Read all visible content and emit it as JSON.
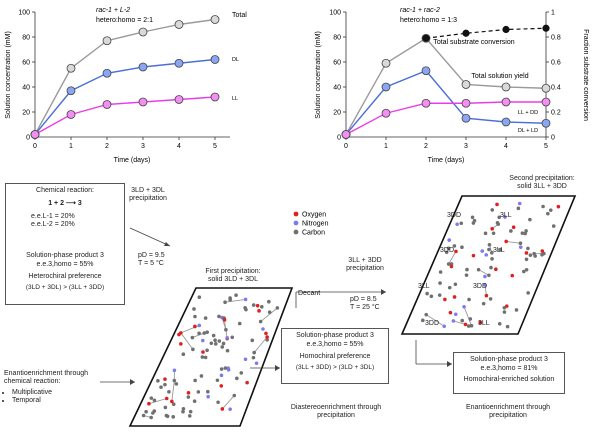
{
  "chart_data": [
    {
      "type": "line",
      "title": "",
      "annotation_top": "rac-1 + L-2",
      "annotation_sub": "hetero:homo = 2:1",
      "xlabel": "Time (days)",
      "ylabel": "Solution concentration (mM)",
      "x": [
        0,
        1,
        2,
        3,
        4,
        5
      ],
      "xlim": [
        0,
        5
      ],
      "ylim": [
        0,
        100
      ],
      "yticks": [
        0,
        20,
        40,
        60,
        80,
        100
      ],
      "grid": false,
      "series": [
        {
          "name": "Total",
          "color": "#9a9a9a",
          "fill": "#d9d9d9",
          "values": [
            2,
            55,
            77,
            84,
            90,
            94
          ]
        },
        {
          "name": "DL",
          "color": "#4a6fd8",
          "fill": "#8aa6f2",
          "values": [
            2,
            37,
            51,
            56,
            59,
            62
          ]
        },
        {
          "name": "LL",
          "color": "#e83ee8",
          "fill": "#f38ef3",
          "values": [
            2,
            18,
            26,
            28,
            30,
            32
          ]
        }
      ]
    },
    {
      "type": "line",
      "title": "",
      "annotation_top": "rac-1 + rac-2",
      "annotation_sub": "hetero:homo = 1:3",
      "xlabel": "Time (days)",
      "ylabel": "Solution concentration (mM)",
      "y2label": "Fraction substrate conversion",
      "x": [
        0,
        1,
        2,
        3,
        4,
        5
      ],
      "xlim": [
        0,
        5
      ],
      "ylim": [
        0,
        100
      ],
      "yticks": [
        0,
        20,
        40,
        60,
        80,
        100
      ],
      "y2ticks": [
        0,
        0.2,
        0.4,
        0.6,
        0.8,
        1.0
      ],
      "grid": false,
      "series": [
        {
          "name": "Total solution yield",
          "color": "#9a9a9a",
          "fill": "#d9d9d9",
          "values": [
            2,
            59,
            79,
            42,
            40,
            39
          ]
        },
        {
          "name": "DL + LD",
          "color": "#4a6fd8",
          "fill": "#8aa6f2",
          "values": [
            2,
            40,
            53,
            15,
            12,
            11
          ]
        },
        {
          "name": "LL + DD",
          "color": "#e83ee8",
          "fill": "#f38ef3",
          "values": [
            2,
            19,
            27,
            27,
            28,
            28
          ]
        },
        {
          "name": "Total substrate conversion",
          "color": "#111111",
          "fill": "#111111",
          "dashed_after_index": 2,
          "values": [
            null,
            null,
            79,
            83,
            86,
            87
          ]
        }
      ]
    }
  ],
  "scheme": {
    "chem_box": {
      "title": "Chemical reaction:",
      "reaction": "1 + 2 ⟶ 3",
      "ee1": "e.e.L-1 = 20%",
      "ee2": "e.e.L-2 = 20%",
      "product_title": "Solution-phase product 3",
      "product_ee": "e.e.3,homo = 55%",
      "preference": "Heterochiral preference",
      "inequality": "(3LD + 3DL) > (3LL + 3DD)"
    },
    "enantio_note": {
      "title": "Enantioenrichment through chemical reaction:",
      "bullets": [
        "Multiplicative",
        "Temporal"
      ]
    },
    "precip1": {
      "label_top": "3LD + 3DL precipitation",
      "conditions": [
        "pD = 9.5",
        "T = 5 °C"
      ],
      "first_title": "First precipitation:",
      "first_solid": "solid 3LD + 3DL"
    },
    "mid_box": {
      "title": "Solution-phase product 3",
      "ee": "e.e.3,homo = 55%",
      "preference": "Homochiral preference",
      "inequality": "(3LL + 3DD) > (3LD + 3DL)"
    },
    "diastereo_note": "Diastereoenrichment through precipitation",
    "decant": "Decant",
    "precip2": {
      "label_top": "3LL + 3DD precipitation",
      "conditions": [
        "pD = 8.5",
        "T = 25 °C"
      ],
      "second_title": "Second precipitation:",
      "second_solid": "solid 3LL + 3DD"
    },
    "legend": [
      {
        "label": "Oxygen",
        "color": "#e02020"
      },
      {
        "label": "Nitrogen",
        "color": "#7c7cf0"
      },
      {
        "label": "Carbon",
        "color": "#707070"
      }
    ],
    "final_box": {
      "title": "Solution-phase product 3",
      "ee": "e.e.3,homo = 81%",
      "note": "Homochiral-enriched solution"
    },
    "enantio_precip_note": "Enantioenrichment through precipitation",
    "crystal_labels": [
      "3DD",
      "3LL",
      "3DD",
      "3LL",
      "3LL",
      "3DD",
      "3DD",
      "3LL"
    ]
  }
}
